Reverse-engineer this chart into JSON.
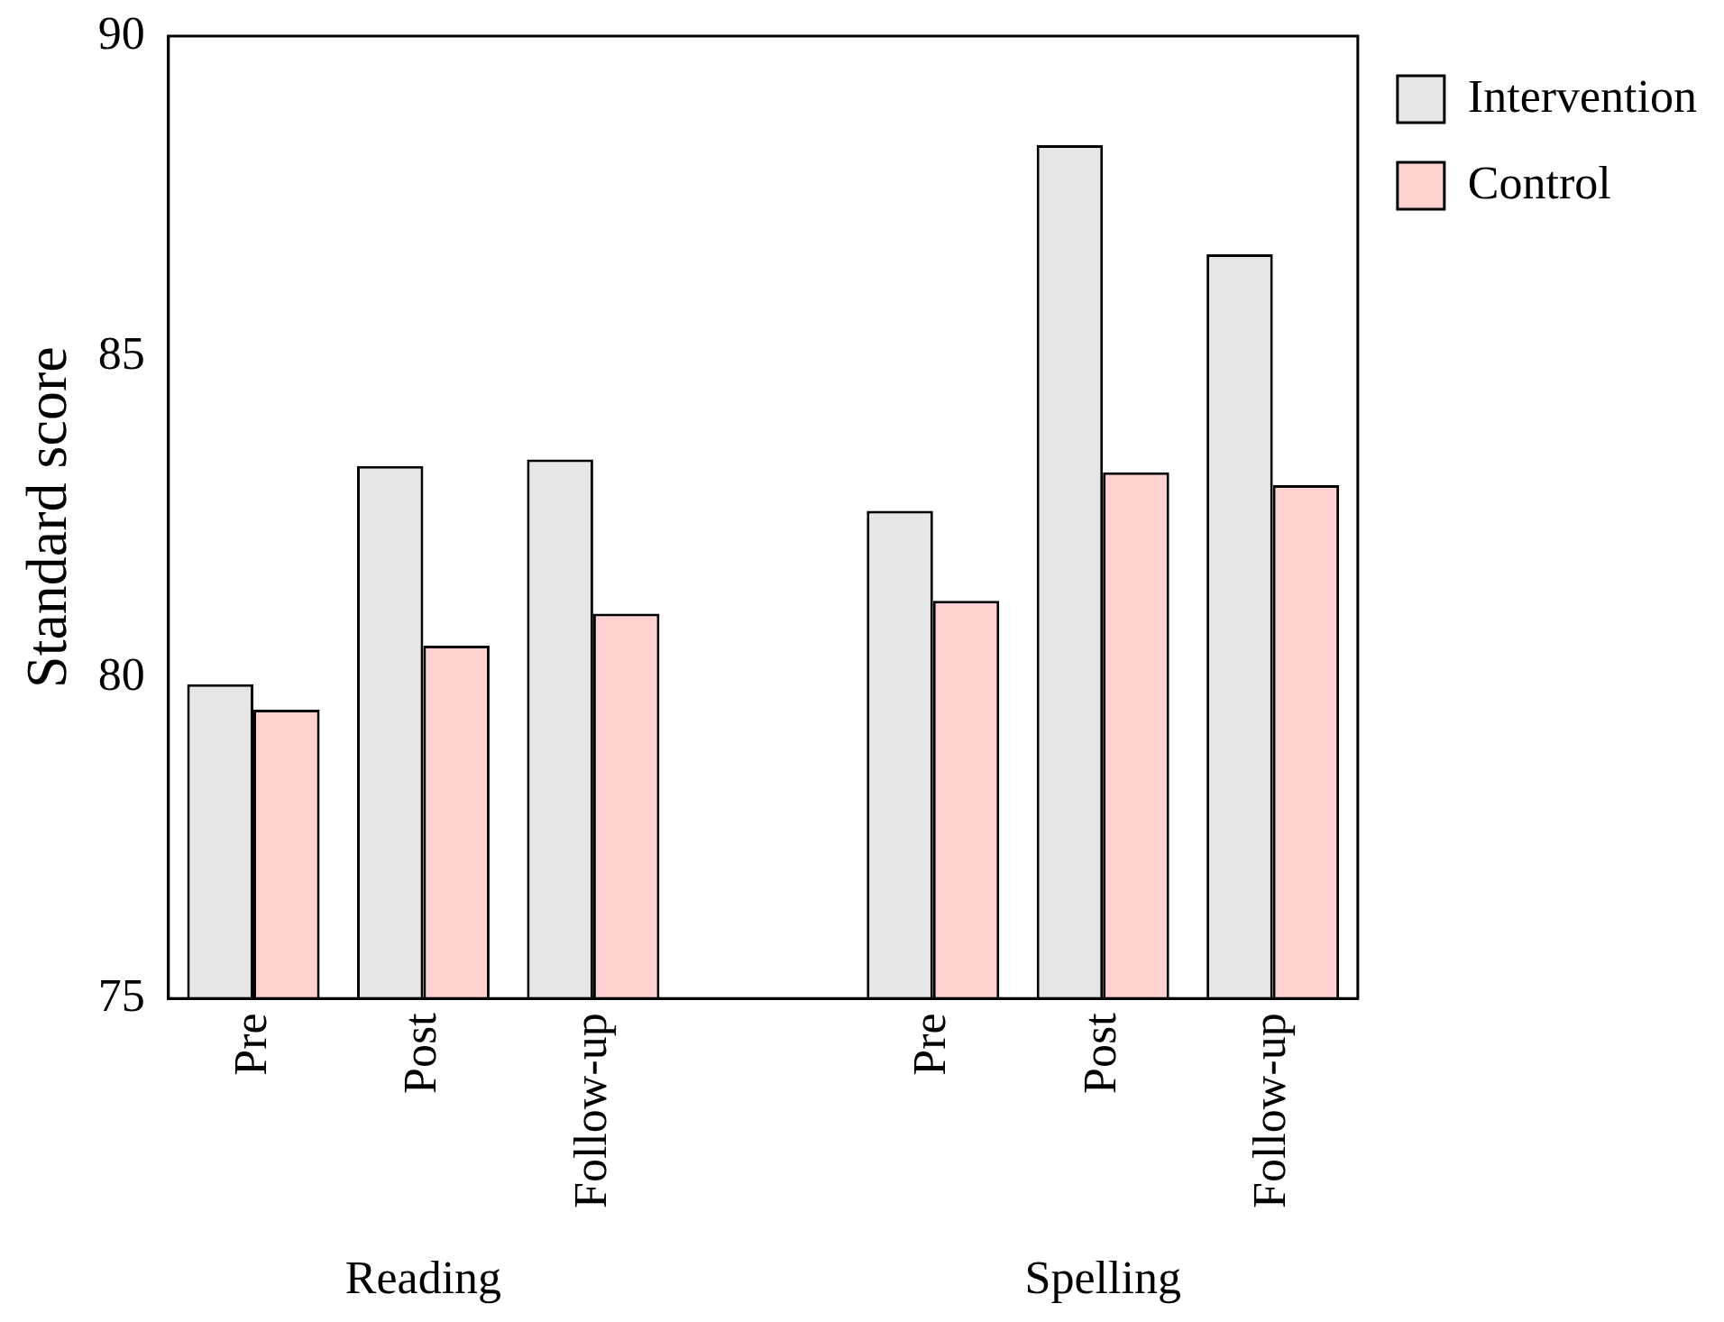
{
  "chart_data": {
    "type": "bar",
    "ylabel": "Standard score",
    "categories": [
      "Pre",
      "Post",
      "Follow-up",
      null,
      "Pre",
      "Post",
      "Follow-up"
    ],
    "series": [
      {
        "name": "Intervention",
        "color": "#e6e6e6",
        "values": [
          79.9,
          83.3,
          83.4,
          null,
          82.6,
          88.3,
          86.6
        ]
      },
      {
        "name": "Control",
        "color": "#ffd1d1",
        "values": [
          79.5,
          80.5,
          81.0,
          null,
          81.2,
          83.2,
          83.0
        ]
      }
    ],
    "ylim": [
      75,
      90
    ],
    "yticks": [
      75,
      80,
      85,
      90
    ],
    "grid": false,
    "legend": "top right",
    "annotations": [
      "Reading",
      "Spelling"
    ]
  }
}
